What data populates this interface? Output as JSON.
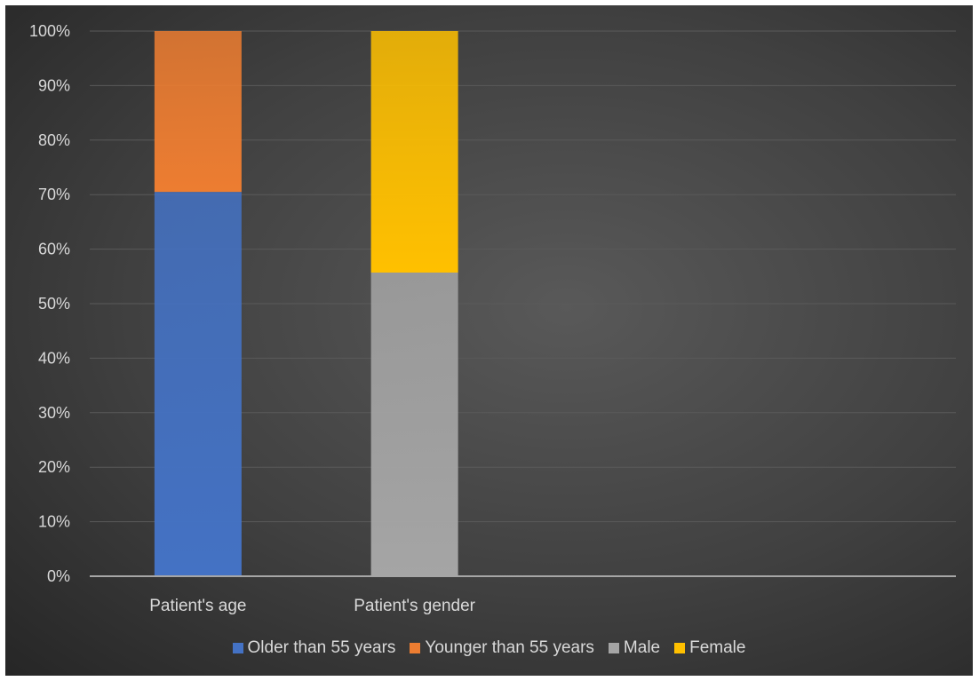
{
  "chart_data": {
    "type": "bar",
    "stacked": true,
    "categories": [
      "Patient's age",
      "Patient's gender"
    ],
    "series": [
      {
        "name": "Older than 55 years",
        "values": [
          70.5,
          0
        ],
        "color": "#4472c4"
      },
      {
        "name": "Younger than 55 years",
        "values": [
          29.5,
          0
        ],
        "color": "#ed7d31"
      },
      {
        "name": "Male",
        "values": [
          0,
          55.7
        ],
        "color": "#a5a5a5"
      },
      {
        "name": "Female",
        "values": [
          0,
          44.3
        ],
        "color": "#ffc000"
      }
    ],
    "y_ticks": [
      "0%",
      "10%",
      "20%",
      "30%",
      "40%",
      "50%",
      "60%",
      "70%",
      "80%",
      "90%",
      "100%"
    ],
    "ylim": [
      0,
      100
    ],
    "grid": true,
    "legend_position": "bottom",
    "background": "#404040"
  }
}
